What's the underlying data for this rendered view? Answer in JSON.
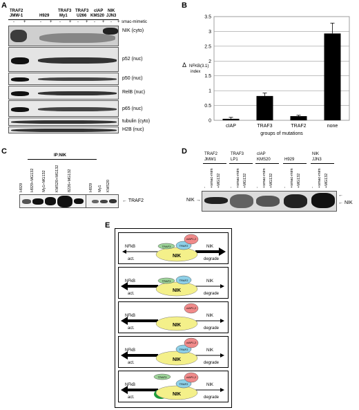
{
  "panel_labels": {
    "A": "A",
    "B": "B",
    "C": "C",
    "D": "D",
    "E": "E"
  },
  "panelA": {
    "groups": [
      {
        "top": "TRAF2",
        "bottom": "JMW-1"
      },
      {
        "top": "",
        "bottom": "H929"
      },
      {
        "top": "TRAF3",
        "bottom": "My1"
      },
      {
        "top": "TRAF3",
        "bottom": "U266"
      },
      {
        "top": "cIAP",
        "bottom": "KMS20"
      },
      {
        "top": "NIK",
        "bottom": "JJN3"
      }
    ],
    "treatment": "smac-mimetic",
    "minus": "-",
    "plus": "+",
    "blots": [
      "NIK (cyto)",
      "p52 (nuc)",
      "p50 (nuc)",
      "RelB (nuc)",
      "p65 (nuc)",
      "tubulin (cyto)",
      "H2B (nuc)"
    ]
  },
  "chart_data": {
    "type": "bar",
    "categories": [
      "cIAP",
      "TRAF3",
      "TRAF2",
      "none"
    ],
    "values": [
      0.05,
      0.82,
      0.14,
      2.93
    ],
    "errors": [
      0.05,
      0.1,
      0.03,
      0.35
    ],
    "xlabel": "groups of mutations",
    "ylabel_main": "Δ",
    "ylabel_sub": "NFKB(3.1)",
    "ylabel_tail": "index",
    "ylim": [
      0,
      3.5
    ],
    "yticks": [
      "0",
      "0.5",
      "1",
      "1.5",
      "2",
      "2.5",
      "3",
      "3.5"
    ],
    "grid": true
  },
  "panelC": {
    "title": "IP:NIK",
    "lanes": [
      "H929",
      "H929+MG132",
      "My1+MG132",
      "KMS20+MG132",
      "8226+MG132",
      "H929",
      "My1",
      "KMS20"
    ],
    "band_label": "TRAF2"
  },
  "panelD": {
    "groups": [
      {
        "top": "TRAF2",
        "bottom": "JMW1"
      },
      {
        "top": "TRAF3",
        "bottom": "LP1"
      },
      {
        "top": "cIAP",
        "bottom": "KMS20"
      },
      {
        "top": "",
        "bottom": "H929"
      },
      {
        "top": "NIK",
        "bottom": "JJN3"
      }
    ],
    "lane_a": "+smac-mim",
    "lane_b": "+MG132",
    "lane_c": "-",
    "left_label": "NIK",
    "right_label": "NIK"
  },
  "panelE": {
    "nfkb": "NFkB",
    "act": "act.",
    "nik": "NIK",
    "degrade": "degrade",
    "traf3": "TRAF3",
    "traf2": "TRAF2",
    "ciap": "cIAP1,2"
  }
}
